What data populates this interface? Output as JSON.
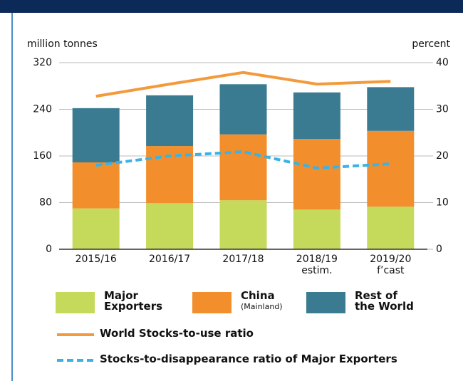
{
  "chart_data": {
    "type": "stacked-bar-line",
    "y_label": "million tonnes",
    "y2_label": "percent",
    "categories": [
      "2015/16",
      "2016/17",
      "2017/18",
      "2018/19\nestim.",
      "2019/20\nf’cast"
    ],
    "ylim": [
      0,
      320
    ],
    "yticks": [
      0,
      80,
      160,
      240,
      320
    ],
    "y2lim": [
      0,
      40
    ],
    "y2ticks": [
      0,
      10,
      20,
      30,
      40
    ],
    "series": [
      {
        "name": "Major\nExporters",
        "color": "#c5d95a",
        "values": [
          70,
          79,
          84,
          68,
          73
        ]
      },
      {
        "name": "China",
        "name_note": "(Mainland)",
        "color": "#f28f2c",
        "values": [
          79,
          98,
          113,
          121,
          130
        ]
      },
      {
        "name": "Rest of\nthe World",
        "color": "#3a7b91",
        "values": [
          93,
          87,
          86,
          80,
          75
        ]
      },
      {
        "name": "World Stocks-to-use ratio",
        "color": "#f39a3c",
        "axis": "y2",
        "line": "solid",
        "values": [
          32.8,
          35.4,
          37.9,
          35.4,
          36.0
        ]
      },
      {
        "name": "Stocks-to-disappearance ratio of Major Exporters",
        "color": "#39b3e6",
        "axis": "y2",
        "line": "dashed",
        "values": [
          18.0,
          20.0,
          20.9,
          17.4,
          18.3
        ]
      }
    ]
  }
}
